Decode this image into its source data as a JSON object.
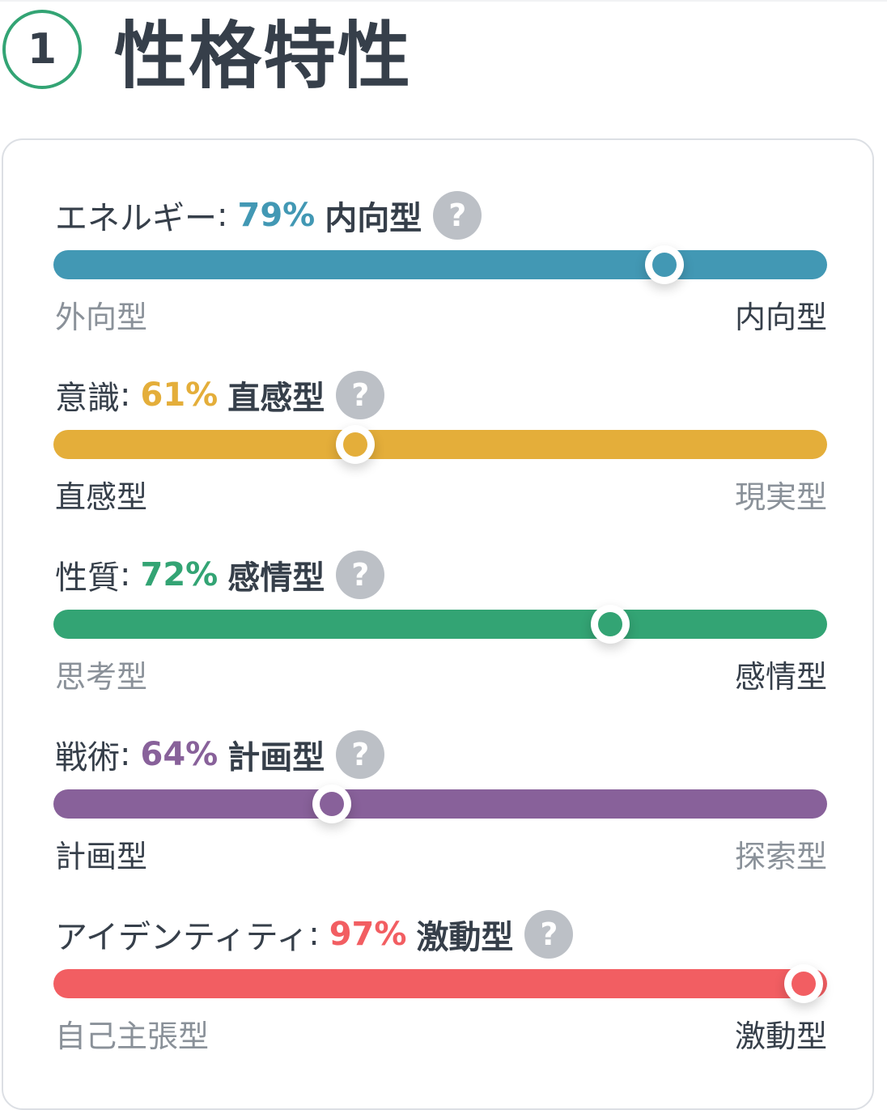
{
  "section": {
    "number": "1",
    "title": "性格特性"
  },
  "traits": [
    {
      "name": "エネルギー",
      "colon": ":",
      "percent": "79%",
      "result": "内向型",
      "help_icon": "?",
      "color": "#4298b4",
      "position": 0.79,
      "left_label": "外向型",
      "right_label": "内向型",
      "active_side": "right"
    },
    {
      "name": "意識",
      "colon": ":",
      "percent": "61%",
      "result": "直感型",
      "help_icon": "?",
      "color": "#e4ae3a",
      "position": 0.39,
      "left_label": "直感型",
      "right_label": "現実型",
      "active_side": "left"
    },
    {
      "name": "性質",
      "colon": ":",
      "percent": "72%",
      "result": "感情型",
      "help_icon": "?",
      "color": "#33a474",
      "position": 0.72,
      "left_label": "思考型",
      "right_label": "感情型",
      "active_side": "right"
    },
    {
      "name": "戦術",
      "colon": ":",
      "percent": "64%",
      "result": "計画型",
      "help_icon": "?",
      "color": "#88619a",
      "position": 0.36,
      "left_label": "計画型",
      "right_label": "探索型",
      "active_side": "left"
    },
    {
      "name": "アイデンティティ",
      "colon": ":",
      "percent": "97%",
      "result": "激動型",
      "help_icon": "?",
      "color": "#f25e62",
      "position": 0.97,
      "left_label": "自己主張型",
      "right_label": "激動型",
      "active_side": "right"
    }
  ]
}
